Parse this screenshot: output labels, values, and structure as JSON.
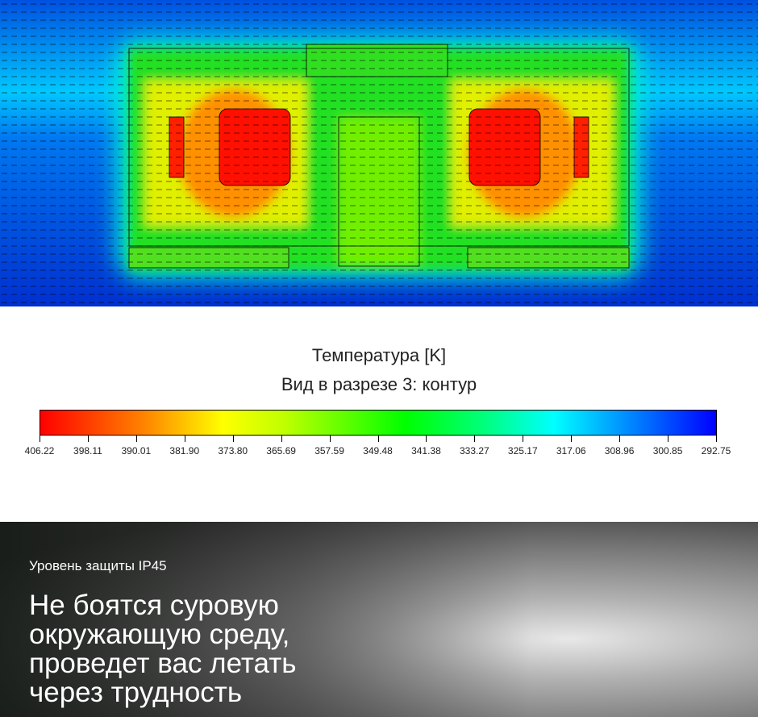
{
  "legend": {
    "title": "Температура [K]",
    "subtitle": "Вид в разрезе 3: контур",
    "ticks": [
      "406.22",
      "398.11",
      "390.01",
      "381.90",
      "373.80",
      "365.69",
      "357.59",
      "349.48",
      "341.38",
      "333.27",
      "325.17",
      "317.06",
      "308.96",
      "300.85",
      "292.75"
    ],
    "colors": [
      "#ff0000",
      "#ffff00",
      "#00ff00",
      "#00ffff",
      "#0000ff"
    ]
  },
  "banner": {
    "subtitle": "Уровень защиты IP45",
    "headline_lines": [
      "Не боятся суровую",
      "окружающую среду,",
      "проведет вас летать",
      "через трудность"
    ]
  }
}
